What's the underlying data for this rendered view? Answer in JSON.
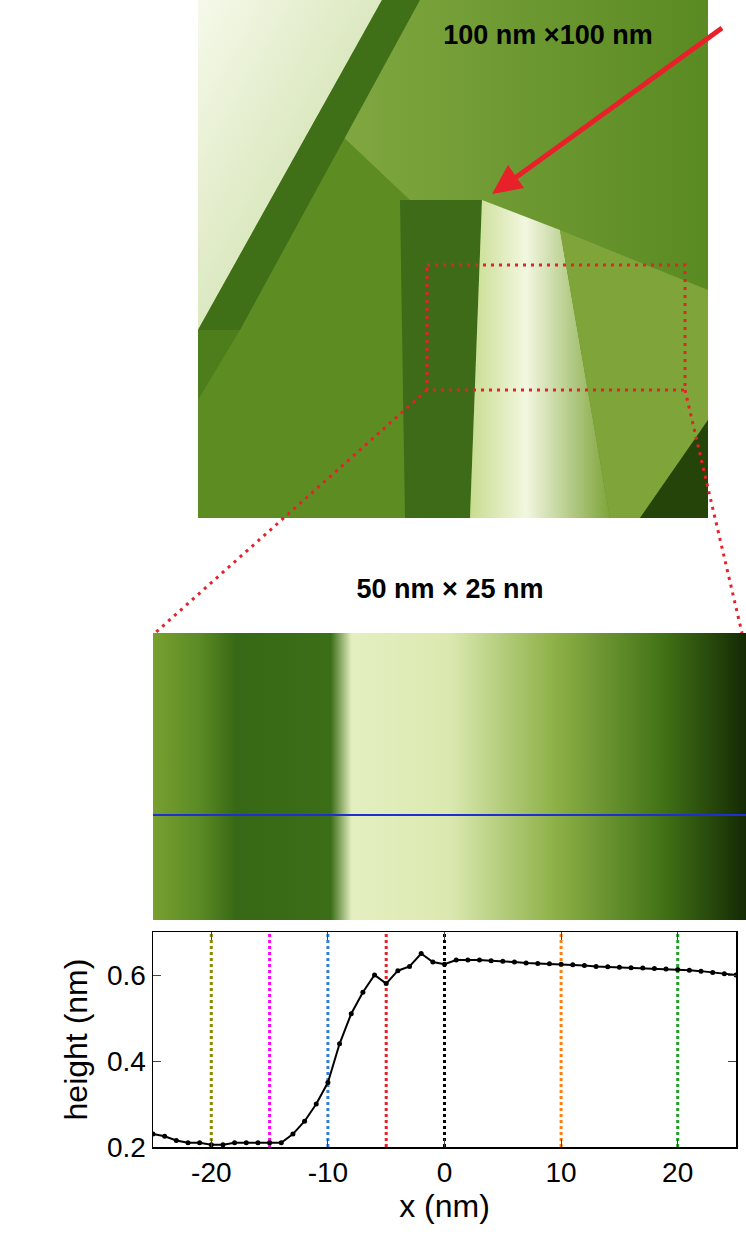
{
  "chart_data": {
    "type": "line",
    "x_label": "x (nm)",
    "y_label": "height (nm)",
    "x": [
      -25,
      -24,
      -23,
      -22,
      -21,
      -20,
      -19,
      -18,
      -17,
      -16,
      -15,
      -14,
      -13,
      -12,
      -11,
      -10,
      -9,
      -8,
      -7,
      -6,
      -5,
      -4,
      -3,
      -2,
      -1,
      0,
      1,
      2,
      3,
      4,
      5,
      6,
      7,
      8,
      9,
      10,
      11,
      12,
      13,
      14,
      15,
      16,
      17,
      18,
      19,
      20,
      21,
      22,
      23,
      24,
      25
    ],
    "values": [
      0.23,
      0.225,
      0.215,
      0.21,
      0.21,
      0.205,
      0.205,
      0.21,
      0.21,
      0.21,
      0.21,
      0.21,
      0.23,
      0.26,
      0.3,
      0.35,
      0.44,
      0.51,
      0.56,
      0.6,
      0.58,
      0.61,
      0.62,
      0.65,
      0.63,
      0.625,
      0.635,
      0.635,
      0.635,
      0.633,
      0.632,
      0.63,
      0.628,
      0.627,
      0.626,
      0.625,
      0.624,
      0.622,
      0.62,
      0.619,
      0.618,
      0.617,
      0.616,
      0.615,
      0.614,
      0.613,
      0.611,
      0.609,
      0.606,
      0.603,
      0.6
    ],
    "color": "#000000",
    "marker": "circle",
    "xlim": [
      -25,
      25
    ],
    "ylim": [
      0.2,
      0.7
    ],
    "xticks": [
      -20,
      -10,
      0,
      10,
      20
    ],
    "yticks": [
      0.2,
      0.4,
      0.6
    ],
    "grid": false,
    "vertical_lines": [
      {
        "x": -20,
        "color": "#8a8a00"
      },
      {
        "x": -15,
        "color": "#ff00ff"
      },
      {
        "x": -10,
        "color": "#2f7fd8"
      },
      {
        "x": -5,
        "color": "#e8202a"
      },
      {
        "x": 0,
        "color": "#000000"
      },
      {
        "x": 10,
        "color": "#ff7f0e"
      },
      {
        "x": 20,
        "color": "#22a02a"
      }
    ],
    "vertical_line_style": "dotted"
  },
  "images": [
    {
      "label": "100 nm ×100 nm"
    },
    {
      "label": "50 nm × 25 nm"
    }
  ]
}
